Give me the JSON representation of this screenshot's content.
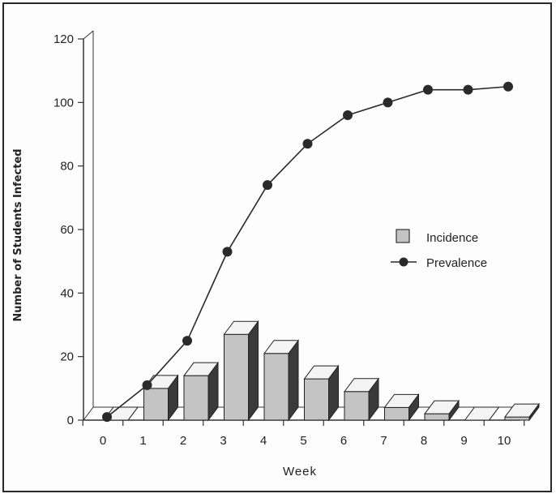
{
  "chart_data": {
    "type": "bar",
    "xlabel": "Week",
    "ylabel": "Number of Students Infected",
    "ylim": [
      0,
      120
    ],
    "yticks": [
      "0",
      "20",
      "40",
      "60",
      "80",
      "100",
      "120"
    ],
    "categories": [
      "0",
      "1",
      "2",
      "3",
      "4",
      "5",
      "6",
      "7",
      "8",
      "9",
      "10"
    ],
    "series": [
      {
        "name": "Incidence",
        "kind": "bar-3d",
        "values": [
          0,
          10,
          14,
          27,
          21,
          13,
          9,
          4,
          2,
          0,
          1
        ]
      },
      {
        "name": "Prevalence",
        "kind": "line-markers",
        "values": [
          1,
          11,
          25,
          53,
          74,
          87,
          96,
          100,
          104,
          104,
          105
        ]
      }
    ],
    "legend": {
      "placement": "center-right"
    },
    "grid": false,
    "colors": {
      "bar_front": "#c4c4c4",
      "bar_top": "#f4f4f4",
      "bar_side": "#3a3a3a",
      "line": "#2a2a2a",
      "axis": "#333333"
    }
  }
}
